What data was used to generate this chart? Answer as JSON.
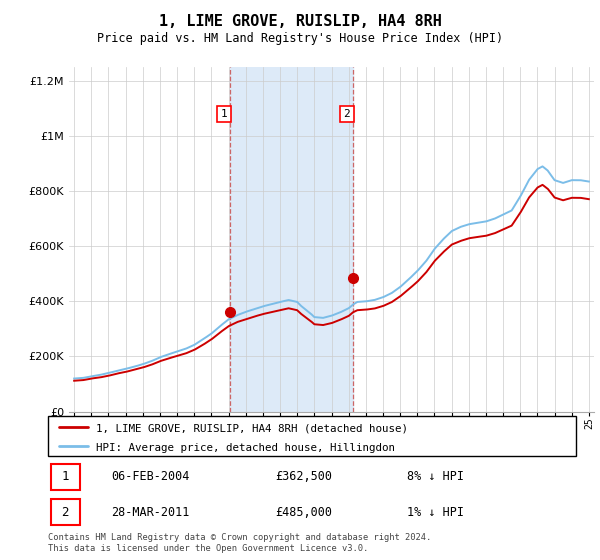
{
  "title": "1, LIME GROVE, RUISLIP, HA4 8RH",
  "subtitle": "Price paid vs. HM Land Registry's House Price Index (HPI)",
  "hpi_label": "HPI: Average price, detached house, Hillingdon",
  "property_label": "1, LIME GROVE, RUISLIP, HA4 8RH (detached house)",
  "sale1_date": "06-FEB-2004",
  "sale1_price": "£362,500",
  "sale1_hpi": "8% ↓ HPI",
  "sale2_date": "28-MAR-2011",
  "sale2_price": "£485,000",
  "sale2_hpi": "1% ↓ HPI",
  "footnote": "Contains HM Land Registry data © Crown copyright and database right 2024.\nThis data is licensed under the Open Government Licence v3.0.",
  "hpi_color": "#7bbde8",
  "property_color": "#cc0000",
  "shading_color": "#ddeaf8",
  "sale1_x": 2004.09,
  "sale2_x": 2011.24,
  "sale1_y": 362500,
  "sale2_y": 485000,
  "ylim": [
    0,
    1250000
  ],
  "xlim_start": 1994.7,
  "xlim_end": 2025.3,
  "years": [
    1995,
    1995.5,
    1996,
    1996.5,
    1997,
    1997.5,
    1998,
    1998.5,
    1999,
    1999.5,
    2000,
    2000.5,
    2001,
    2001.5,
    2002,
    2002.5,
    2003,
    2003.5,
    2004,
    2004.5,
    2005,
    2005.5,
    2006,
    2006.5,
    2007,
    2007.5,
    2008,
    2008.2,
    2008.5,
    2008.8,
    2009,
    2009.5,
    2010,
    2010.5,
    2011,
    2011.24,
    2011.5,
    2012,
    2012.5,
    2013,
    2013.5,
    2014,
    2014.5,
    2015,
    2015.5,
    2016,
    2016.5,
    2017,
    2017.5,
    2018,
    2018.5,
    2019,
    2019.5,
    2020,
    2020.5,
    2021,
    2021.5,
    2022,
    2022.3,
    2022.6,
    2023,
    2023.5,
    2024,
    2024.5,
    2025
  ],
  "hpi_vals": [
    120000,
    122000,
    128000,
    133000,
    140000,
    148000,
    155000,
    163000,
    172000,
    183000,
    197000,
    208000,
    218000,
    228000,
    242000,
    262000,
    283000,
    310000,
    335000,
    350000,
    362000,
    372000,
    382000,
    390000,
    398000,
    405000,
    398000,
    385000,
    370000,
    355000,
    343000,
    340000,
    348000,
    360000,
    375000,
    388000,
    398000,
    400000,
    405000,
    415000,
    430000,
    452000,
    480000,
    510000,
    545000,
    590000,
    625000,
    655000,
    670000,
    680000,
    685000,
    690000,
    700000,
    715000,
    730000,
    780000,
    840000,
    880000,
    890000,
    875000,
    840000,
    830000,
    840000,
    840000,
    835000
  ],
  "prop_vals": [
    112000,
    114000,
    120000,
    124000,
    130000,
    138000,
    144000,
    152000,
    160000,
    170000,
    183000,
    193000,
    202000,
    211000,
    224000,
    242000,
    262000,
    287000,
    310000,
    325000,
    335000,
    345000,
    354000,
    361000,
    368000,
    375000,
    368000,
    356000,
    342000,
    328000,
    317000,
    314000,
    321000,
    333000,
    347000,
    360000,
    368000,
    370000,
    374000,
    383000,
    397000,
    418000,
    444000,
    471000,
    504000,
    546000,
    578000,
    606000,
    619000,
    629000,
    634000,
    638000,
    647000,
    661000,
    675000,
    721000,
    776000,
    813000,
    823000,
    809000,
    777000,
    767000,
    776000,
    776000,
    771000
  ]
}
